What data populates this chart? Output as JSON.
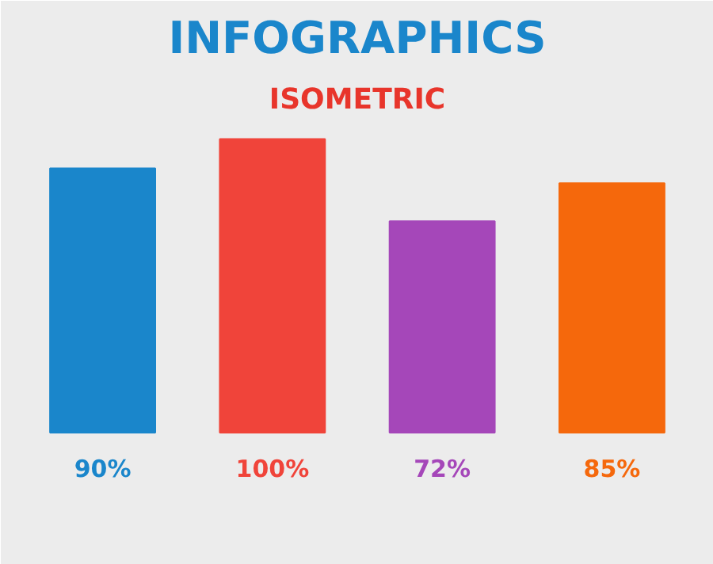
{
  "chart_data": {
    "type": "bar",
    "title": "INFOGRAPHICS",
    "subtitle": "ISOMETRIC",
    "categories": [
      null,
      null,
      null,
      null
    ],
    "values": [
      90,
      100,
      72,
      85
    ],
    "colors": [
      "#1a86cb",
      "#f0443a",
      "#a547b9",
      "#f5680c"
    ],
    "value_labels": [
      "90%",
      "100%",
      "72%",
      "85%"
    ]
  }
}
